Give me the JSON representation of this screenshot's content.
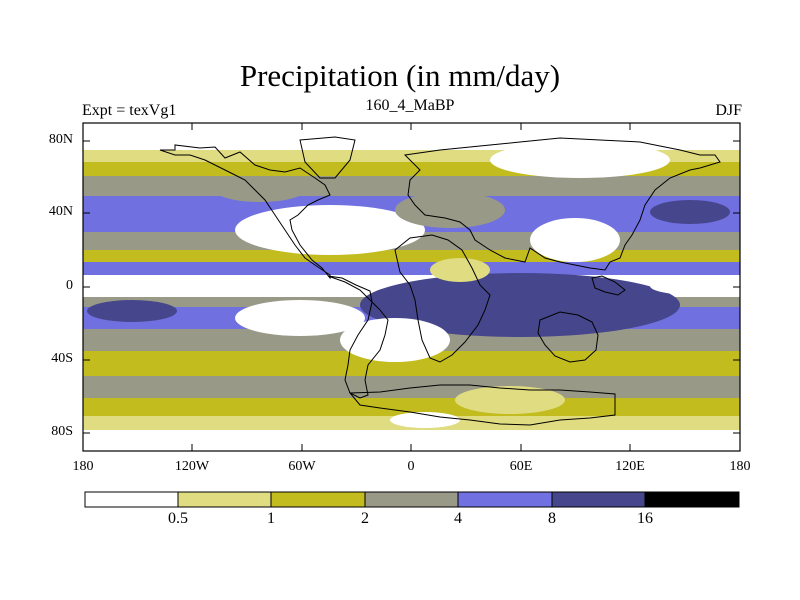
{
  "map": {
    "title": "Precipitation (in mm/day)",
    "left_label": "Expt = texVg1",
    "center_label": "160_4_MaBP",
    "right_label": "DJF",
    "lat_ticks": [
      "80N",
      "40N",
      "0",
      "40S",
      "80S"
    ],
    "lon_ticks": [
      "180",
      "120W",
      "60W",
      "0",
      "60E",
      "120E",
      "180"
    ]
  },
  "colorbar": {
    "colors": [
      "#ffffff",
      "#e0dc82",
      "#c2bc1e",
      "#999988",
      "#7070e0",
      "#46468c",
      "#000000"
    ],
    "labels": [
      "0.5",
      "1",
      "2",
      "4",
      "8",
      "16"
    ]
  }
}
